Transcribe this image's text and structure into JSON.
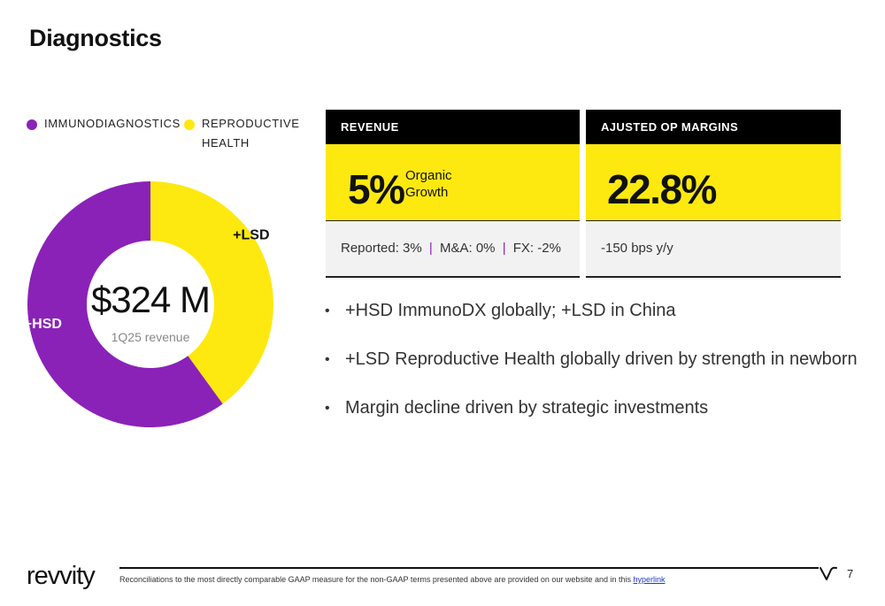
{
  "page": {
    "title": "Diagnostics",
    "page_number": "7"
  },
  "legend": [
    {
      "label": "IMMUNODIAGNOSTICS",
      "color": "#8a22b8"
    },
    {
      "label": "REPRODUCTIVE HEALTH",
      "color": "#fde910"
    }
  ],
  "chart_data": {
    "type": "pie",
    "donut": true,
    "categories": [
      "IMMUNODIAGNOSTICS",
      "REPRODUCTIVE HEALTH"
    ],
    "values": [
      60,
      40
    ],
    "data_labels": [
      "+HSD",
      "+LSD"
    ],
    "colors": [
      "#8a22b8",
      "#fde910"
    ],
    "center_value": "$324 M",
    "center_label": "1Q25 revenue",
    "legend_position": "top-left"
  },
  "revenue_card": {
    "header": "REVENUE",
    "value": "5%",
    "label_line1": "Organic",
    "label_line2": "Growth",
    "reported": "Reported: 3%",
    "ma": "M&A: 0%",
    "fx": "FX: -2%",
    "separator": "|"
  },
  "margin_card": {
    "header": "AJUSTED OP MARGINS",
    "value": "22.8%",
    "note": "-150 bps y/y"
  },
  "bullets": [
    "+HSD ImmunoDX globally; +LSD in China",
    "+LSD Reproductive Health globally driven by strength in newborn",
    "Margin decline driven by strategic investments"
  ],
  "footer": {
    "logo": "revvity",
    "note": "Reconciliations to the most directly comparable GAAP measure for the non-GAAP terms presented above are provided on our website and in this",
    "link": "hyperlink"
  }
}
